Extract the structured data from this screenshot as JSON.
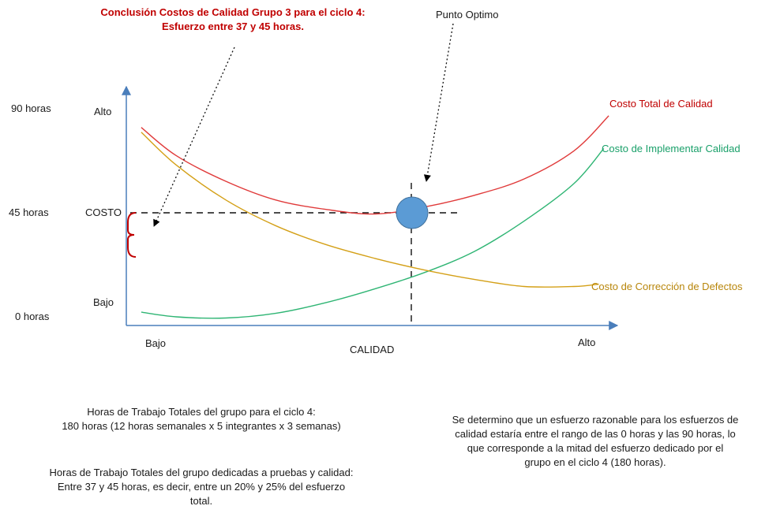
{
  "annotations": {
    "conclusion": [
      "Conclusión Costos de Calidad Grupo 3 para el ciclo 4:",
      "Esfuerzo entre 37 y 45 horas."
    ],
    "optimum": "Punto Optimo"
  },
  "y_hours_labels": [
    "90 horas",
    "45 horas",
    "0 horas"
  ],
  "y_qual_labels": {
    "top": "Alto",
    "middle": "COSTO",
    "bottom": "Bajo"
  },
  "x_qual_labels": {
    "left": "Bajo",
    "right": "Alto"
  },
  "notes": {
    "left_1": [
      "Horas de Trabajo Totales del grupo para el ciclo 4:",
      "180 horas (12 horas semanales x 5 integrantes x 3 semanas)"
    ],
    "left_2": [
      "Horas de Trabajo Totales del grupo dedicadas a pruebas y calidad:",
      "Entre 37 y 45 horas, es decir, entre un 20% y 25% del esfuerzo",
      "total."
    ],
    "right": [
      "Se determino que un esfuerzo razonable para los esfuerzos de",
      "calidad estaría entre el rango de las 0 horas y las 90 horas, lo",
      "que corresponde a la mitad del esfuerzo dedicado por el",
      "grupo en el ciclo 4 (180 horas)."
    ]
  },
  "colors": {
    "axis": "#4a7ebb",
    "total": "#e03a3a",
    "implement": "#2fb574",
    "correction": "#d4a017",
    "marker": "#5b9bd5",
    "brace": "#c00000"
  },
  "chart_data": {
    "type": "line",
    "title": "",
    "xlabel": "CALIDAD",
    "ylabel": "COSTO",
    "xlim": [
      0,
      1
    ],
    "ylim": [
      0,
      90
    ],
    "y_unit": "horas",
    "series": [
      {
        "name": "Costo Total de Calidad",
        "color_key": "total",
        "x": [
          0.03,
          0.1,
          0.2,
          0.3,
          0.4,
          0.5,
          0.6,
          0.7,
          0.8,
          0.9,
          0.97
        ],
        "y": [
          82,
          70,
          59,
          51,
          47,
          45,
          48,
          53,
          60,
          72,
          87
        ]
      },
      {
        "name": "Costo de Implementar Calidad",
        "color_key": "implement",
        "x": [
          0.03,
          0.1,
          0.2,
          0.3,
          0.4,
          0.5,
          0.6,
          0.7,
          0.8,
          0.9,
          0.96
        ],
        "y": [
          3,
          1,
          0.5,
          2.5,
          7,
          13,
          20,
          29,
          42,
          58,
          73
        ]
      },
      {
        "name": "Costo de Corrección de Defectos",
        "color_key": "correction",
        "x": [
          0.03,
          0.1,
          0.2,
          0.3,
          0.4,
          0.5,
          0.6,
          0.7,
          0.8,
          0.9,
          0.95
        ],
        "y": [
          80,
          66,
          51,
          40,
          32,
          26,
          21,
          17,
          14,
          14,
          15
        ]
      }
    ],
    "optimum_point": {
      "x": 0.61,
      "y": 45
    },
    "effort_range_hours": [
      37,
      45
    ]
  }
}
